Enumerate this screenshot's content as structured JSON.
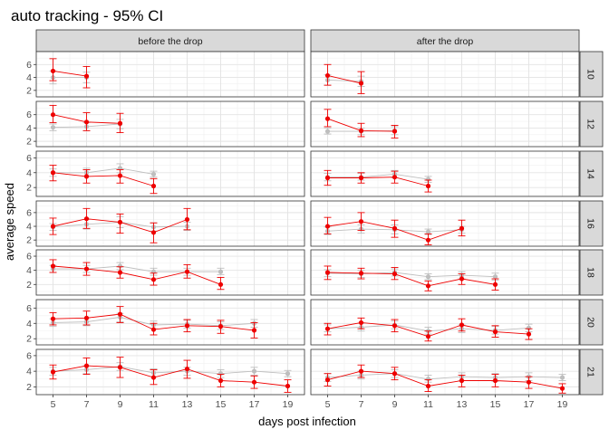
{
  "chart_data": {
    "type": "line",
    "title": "auto tracking - 95% CI",
    "xlabel": "days post infection",
    "ylabel": "average speed",
    "x_ticks": [
      5,
      7,
      9,
      11,
      13,
      15,
      17,
      19
    ],
    "xlim": [
      4,
      20
    ],
    "y_ticks": [
      2,
      4,
      6
    ],
    "columns": [
      "before the drop",
      "after the drop"
    ],
    "rows": [
      "10",
      "12",
      "14",
      "16",
      "18",
      "20",
      "21"
    ],
    "colors": {
      "red_series": "#ee0000",
      "grey_series": "#bebebe",
      "strip": "#d9d9d9"
    },
    "panels": [
      {
        "row": "10",
        "col": "before the drop",
        "ylim": [
          1,
          8
        ],
        "red": [
          {
            "x": 5,
            "y": 5.0,
            "lo": 3.5,
            "hi": 6.9
          },
          {
            "x": 7,
            "y": 4.2,
            "lo": 2.4,
            "hi": 5.7
          }
        ],
        "grey": [
          {
            "x": 5,
            "y": 4.0,
            "lo": 3.0,
            "hi": 5.0
          },
          {
            "x": 7,
            "y": 4.0,
            "lo": 3.2,
            "hi": 4.8
          }
        ]
      },
      {
        "row": "10",
        "col": "after the drop",
        "ylim": [
          1,
          8
        ],
        "red": [
          {
            "x": 5,
            "y": 4.3,
            "lo": 2.8,
            "hi": 6.0
          },
          {
            "x": 7,
            "y": 3.1,
            "lo": 1.5,
            "hi": 4.9
          }
        ],
        "grey": [
          {
            "x": 5,
            "y": 3.6,
            "lo": 2.8,
            "hi": 4.4
          },
          {
            "x": 7,
            "y": 3.4,
            "lo": 2.6,
            "hi": 4.2
          }
        ]
      },
      {
        "row": "12",
        "col": "before the drop",
        "ylim": [
          1.2,
          8
        ],
        "red": [
          {
            "x": 5,
            "y": 6.0,
            "lo": 4.8,
            "hi": 7.4
          },
          {
            "x": 7,
            "y": 4.9,
            "lo": 3.6,
            "hi": 6.3
          },
          {
            "x": 9,
            "y": 4.7,
            "lo": 3.3,
            "hi": 6.2
          }
        ],
        "grey": [
          {
            "x": 5,
            "y": 4.1,
            "lo": 3.6,
            "hi": 4.6
          },
          {
            "x": 7,
            "y": 4.2,
            "lo": 3.6,
            "hi": 4.8
          },
          {
            "x": 9,
            "y": 4.6,
            "lo": 3.9,
            "hi": 5.3
          }
        ]
      },
      {
        "row": "12",
        "col": "after the drop",
        "ylim": [
          1.2,
          8
        ],
        "red": [
          {
            "x": 5,
            "y": 5.4,
            "lo": 4.2,
            "hi": 6.8
          },
          {
            "x": 7,
            "y": 3.6,
            "lo": 2.7,
            "hi": 4.7
          },
          {
            "x": 9,
            "y": 3.5,
            "lo": 2.5,
            "hi": 4.4
          }
        ],
        "grey": [
          {
            "x": 5,
            "y": 3.5,
            "lo": 3.1,
            "hi": 4.0
          },
          {
            "x": 7,
            "y": 3.5,
            "lo": 3.0,
            "hi": 4.0
          },
          {
            "x": 9,
            "y": 3.6,
            "lo": 3.0,
            "hi": 4.2
          }
        ]
      },
      {
        "row": "14",
        "col": "before the drop",
        "ylim": [
          0.8,
          6.9
        ],
        "red": [
          {
            "x": 5,
            "y": 4.0,
            "lo": 2.9,
            "hi": 5.0
          },
          {
            "x": 7,
            "y": 3.5,
            "lo": 2.6,
            "hi": 4.4
          },
          {
            "x": 9,
            "y": 3.6,
            "lo": 2.6,
            "hi": 4.4
          },
          {
            "x": 11,
            "y": 2.2,
            "lo": 1.2,
            "hi": 3.2
          }
        ],
        "grey": [
          {
            "x": 5,
            "y": 4.0,
            "lo": 3.5,
            "hi": 4.5
          },
          {
            "x": 7,
            "y": 4.0,
            "lo": 3.5,
            "hi": 4.6
          },
          {
            "x": 9,
            "y": 4.6,
            "lo": 4.0,
            "hi": 5.2
          },
          {
            "x": 11,
            "y": 3.8,
            "lo": 3.4,
            "hi": 4.2
          }
        ]
      },
      {
        "row": "14",
        "col": "after the drop",
        "ylim": [
          0.8,
          6.9
        ],
        "red": [
          {
            "x": 5,
            "y": 3.3,
            "lo": 2.3,
            "hi": 4.3
          },
          {
            "x": 7,
            "y": 3.3,
            "lo": 2.6,
            "hi": 4.0
          },
          {
            "x": 9,
            "y": 3.4,
            "lo": 2.6,
            "hi": 4.2
          },
          {
            "x": 11,
            "y": 2.2,
            "lo": 1.4,
            "hi": 3.0
          }
        ],
        "grey": [
          {
            "x": 5,
            "y": 3.4,
            "lo": 2.9,
            "hi": 3.9
          },
          {
            "x": 7,
            "y": 3.4,
            "lo": 3.0,
            "hi": 3.9
          },
          {
            "x": 9,
            "y": 3.8,
            "lo": 3.3,
            "hi": 4.3
          },
          {
            "x": 11,
            "y": 3.1,
            "lo": 2.7,
            "hi": 3.5
          }
        ]
      },
      {
        "row": "16",
        "col": "before the drop",
        "ylim": [
          1.1,
          7.7
        ],
        "red": [
          {
            "x": 5,
            "y": 4.0,
            "lo": 2.8,
            "hi": 5.2
          },
          {
            "x": 7,
            "y": 5.1,
            "lo": 3.7,
            "hi": 6.6
          },
          {
            "x": 9,
            "y": 4.6,
            "lo": 3.0,
            "hi": 5.8
          },
          {
            "x": 11,
            "y": 3.1,
            "lo": 1.6,
            "hi": 4.5
          },
          {
            "x": 13,
            "y": 5.0,
            "lo": 3.5,
            "hi": 6.6
          }
        ],
        "grey": [
          {
            "x": 5,
            "y": 3.9,
            "lo": 3.4,
            "hi": 4.4
          },
          {
            "x": 7,
            "y": 4.3,
            "lo": 3.6,
            "hi": 5.0
          },
          {
            "x": 9,
            "y": 4.6,
            "lo": 3.8,
            "hi": 5.4
          },
          {
            "x": 11,
            "y": 3.9,
            "lo": 3.3,
            "hi": 4.5
          },
          {
            "x": 13,
            "y": 4.0,
            "lo": 3.4,
            "hi": 4.6
          }
        ]
      },
      {
        "row": "16",
        "col": "after the drop",
        "ylim": [
          1.1,
          7.7
        ],
        "red": [
          {
            "x": 5,
            "y": 4.0,
            "lo": 2.9,
            "hi": 5.3
          },
          {
            "x": 7,
            "y": 4.7,
            "lo": 3.4,
            "hi": 6.0
          },
          {
            "x": 9,
            "y": 3.7,
            "lo": 2.4,
            "hi": 4.9
          },
          {
            "x": 11,
            "y": 2.0,
            "lo": 1.3,
            "hi": 2.9
          },
          {
            "x": 13,
            "y": 3.7,
            "lo": 2.6,
            "hi": 4.9
          }
        ],
        "grey": [
          {
            "x": 5,
            "y": 3.3,
            "lo": 2.8,
            "hi": 3.9
          },
          {
            "x": 7,
            "y": 3.6,
            "lo": 3.0,
            "hi": 4.2
          },
          {
            "x": 9,
            "y": 3.5,
            "lo": 2.9,
            "hi": 4.2
          },
          {
            "x": 11,
            "y": 3.2,
            "lo": 2.8,
            "hi": 3.6
          },
          {
            "x": 13,
            "y": 3.5,
            "lo": 3.0,
            "hi": 4.0
          }
        ]
      },
      {
        "row": "18",
        "col": "before the drop",
        "ylim": [
          0.5,
          6.9
        ],
        "red": [
          {
            "x": 5,
            "y": 4.6,
            "lo": 3.7,
            "hi": 5.5
          },
          {
            "x": 7,
            "y": 4.2,
            "lo": 3.3,
            "hi": 5.1
          },
          {
            "x": 9,
            "y": 3.7,
            "lo": 2.9,
            "hi": 4.5
          },
          {
            "x": 11,
            "y": 2.7,
            "lo": 1.9,
            "hi": 3.6
          },
          {
            "x": 13,
            "y": 3.8,
            "lo": 2.9,
            "hi": 4.8
          },
          {
            "x": 15,
            "y": 2.0,
            "lo": 1.3,
            "hi": 3.0
          }
        ],
        "grey": [
          {
            "x": 5,
            "y": 4.2,
            "lo": 3.7,
            "hi": 4.7
          },
          {
            "x": 7,
            "y": 4.2,
            "lo": 3.7,
            "hi": 4.7
          },
          {
            "x": 9,
            "y": 4.6,
            "lo": 4.1,
            "hi": 5.1
          },
          {
            "x": 11,
            "y": 3.8,
            "lo": 3.3,
            "hi": 4.3
          },
          {
            "x": 13,
            "y": 3.8,
            "lo": 3.3,
            "hi": 4.3
          },
          {
            "x": 15,
            "y": 3.8,
            "lo": 3.4,
            "hi": 4.3
          }
        ]
      },
      {
        "row": "18",
        "col": "after the drop",
        "ylim": [
          0.5,
          6.9
        ],
        "red": [
          {
            "x": 5,
            "y": 3.7,
            "lo": 2.7,
            "hi": 4.6
          },
          {
            "x": 7,
            "y": 3.6,
            "lo": 2.8,
            "hi": 4.3
          },
          {
            "x": 9,
            "y": 3.5,
            "lo": 2.7,
            "hi": 4.4
          },
          {
            "x": 11,
            "y": 1.8,
            "lo": 1.1,
            "hi": 2.5
          },
          {
            "x": 13,
            "y": 2.8,
            "lo": 2.0,
            "hi": 3.5
          },
          {
            "x": 15,
            "y": 2.0,
            "lo": 1.2,
            "hi": 2.8
          }
        ],
        "grey": [
          {
            "x": 5,
            "y": 3.6,
            "lo": 3.1,
            "hi": 4.1
          },
          {
            "x": 7,
            "y": 3.5,
            "lo": 3.0,
            "hi": 4.0
          },
          {
            "x": 9,
            "y": 3.7,
            "lo": 3.2,
            "hi": 4.2
          },
          {
            "x": 11,
            "y": 3.1,
            "lo": 2.7,
            "hi": 3.5
          },
          {
            "x": 13,
            "y": 3.3,
            "lo": 2.8,
            "hi": 3.8
          },
          {
            "x": 15,
            "y": 3.1,
            "lo": 2.6,
            "hi": 3.6
          }
        ]
      },
      {
        "row": "20",
        "col": "before the drop",
        "ylim": [
          1.2,
          7.1
        ],
        "red": [
          {
            "x": 5,
            "y": 4.6,
            "lo": 3.8,
            "hi": 5.4
          },
          {
            "x": 7,
            "y": 4.7,
            "lo": 3.8,
            "hi": 5.6
          },
          {
            "x": 9,
            "y": 5.2,
            "lo": 4.1,
            "hi": 6.2
          },
          {
            "x": 11,
            "y": 3.2,
            "lo": 2.5,
            "hi": 4.0
          },
          {
            "x": 13,
            "y": 3.7,
            "lo": 2.9,
            "hi": 4.5
          },
          {
            "x": 15,
            "y": 3.6,
            "lo": 2.7,
            "hi": 4.4
          },
          {
            "x": 17,
            "y": 3.1,
            "lo": 2.1,
            "hi": 4.1
          }
        ],
        "grey": [
          {
            "x": 5,
            "y": 4.1,
            "lo": 3.6,
            "hi": 4.6
          },
          {
            "x": 7,
            "y": 4.2,
            "lo": 3.7,
            "hi": 4.7
          },
          {
            "x": 9,
            "y": 4.8,
            "lo": 4.2,
            "hi": 5.3
          },
          {
            "x": 11,
            "y": 3.8,
            "lo": 3.3,
            "hi": 4.3
          },
          {
            "x": 13,
            "y": 3.9,
            "lo": 3.4,
            "hi": 4.4
          },
          {
            "x": 15,
            "y": 3.7,
            "lo": 3.2,
            "hi": 4.2
          },
          {
            "x": 17,
            "y": 4.0,
            "lo": 3.5,
            "hi": 4.5
          }
        ]
      },
      {
        "row": "20",
        "col": "after the drop",
        "ylim": [
          1.2,
          7.1
        ],
        "red": [
          {
            "x": 5,
            "y": 3.3,
            "lo": 2.5,
            "hi": 4.0
          },
          {
            "x": 7,
            "y": 4.1,
            "lo": 3.3,
            "hi": 4.7
          },
          {
            "x": 9,
            "y": 3.7,
            "lo": 2.9,
            "hi": 4.5
          },
          {
            "x": 11,
            "y": 2.3,
            "lo": 1.7,
            "hi": 3.0
          },
          {
            "x": 13,
            "y": 3.8,
            "lo": 3.0,
            "hi": 4.6
          },
          {
            "x": 15,
            "y": 2.9,
            "lo": 2.2,
            "hi": 3.7
          },
          {
            "x": 17,
            "y": 2.6,
            "lo": 1.9,
            "hi": 3.3
          }
        ],
        "grey": [
          {
            "x": 5,
            "y": 3.3,
            "lo": 2.9,
            "hi": 3.8
          },
          {
            "x": 7,
            "y": 3.5,
            "lo": 3.0,
            "hi": 4.0
          },
          {
            "x": 9,
            "y": 3.8,
            "lo": 3.3,
            "hi": 4.3
          },
          {
            "x": 11,
            "y": 3.0,
            "lo": 2.6,
            "hi": 3.5
          },
          {
            "x": 13,
            "y": 3.3,
            "lo": 2.8,
            "hi": 3.8
          },
          {
            "x": 15,
            "y": 3.1,
            "lo": 2.6,
            "hi": 3.6
          },
          {
            "x": 17,
            "y": 3.4,
            "lo": 2.9,
            "hi": 3.9
          }
        ]
      },
      {
        "row": "21",
        "col": "before the drop",
        "ylim": [
          1.0,
          6.8
        ],
        "red": [
          {
            "x": 5,
            "y": 3.9,
            "lo": 3.0,
            "hi": 4.8
          },
          {
            "x": 7,
            "y": 4.7,
            "lo": 3.6,
            "hi": 5.7
          },
          {
            "x": 9,
            "y": 4.5,
            "lo": 3.2,
            "hi": 5.8
          },
          {
            "x": 11,
            "y": 3.2,
            "lo": 2.3,
            "hi": 4.2
          },
          {
            "x": 13,
            "y": 4.3,
            "lo": 3.1,
            "hi": 5.4
          },
          {
            "x": 15,
            "y": 2.8,
            "lo": 2.0,
            "hi": 3.6
          },
          {
            "x": 17,
            "y": 2.6,
            "lo": 1.8,
            "hi": 3.4
          },
          {
            "x": 19,
            "y": 2.1,
            "lo": 1.3,
            "hi": 2.9
          }
        ],
        "grey": [
          {
            "x": 5,
            "y": 4.0,
            "lo": 3.5,
            "hi": 4.5
          },
          {
            "x": 7,
            "y": 4.2,
            "lo": 3.7,
            "hi": 4.7
          },
          {
            "x": 9,
            "y": 4.6,
            "lo": 4.1,
            "hi": 5.1
          },
          {
            "x": 11,
            "y": 3.8,
            "lo": 3.3,
            "hi": 4.3
          },
          {
            "x": 13,
            "y": 4.0,
            "lo": 3.5,
            "hi": 4.5
          },
          {
            "x": 15,
            "y": 3.7,
            "lo": 3.2,
            "hi": 4.2
          },
          {
            "x": 17,
            "y": 4.0,
            "lo": 3.5,
            "hi": 4.5
          },
          {
            "x": 19,
            "y": 3.7,
            "lo": 3.3,
            "hi": 4.1
          }
        ]
      },
      {
        "row": "21",
        "col": "after the drop",
        "ylim": [
          1.0,
          6.8
        ],
        "red": [
          {
            "x": 5,
            "y": 2.9,
            "lo": 2.1,
            "hi": 3.7
          },
          {
            "x": 7,
            "y": 4.0,
            "lo": 3.2,
            "hi": 4.8
          },
          {
            "x": 9,
            "y": 3.7,
            "lo": 2.9,
            "hi": 4.5
          },
          {
            "x": 11,
            "y": 2.1,
            "lo": 1.4,
            "hi": 2.9
          },
          {
            "x": 13,
            "y": 2.8,
            "lo": 2.0,
            "hi": 3.5
          },
          {
            "x": 15,
            "y": 2.8,
            "lo": 2.0,
            "hi": 3.6
          },
          {
            "x": 17,
            "y": 2.6,
            "lo": 1.8,
            "hi": 3.3
          },
          {
            "x": 19,
            "y": 1.8,
            "lo": 1.2,
            "hi": 2.4
          }
        ],
        "grey": [
          {
            "x": 5,
            "y": 3.2,
            "lo": 2.7,
            "hi": 3.7
          },
          {
            "x": 7,
            "y": 3.5,
            "lo": 3.0,
            "hi": 4.0
          },
          {
            "x": 9,
            "y": 3.7,
            "lo": 3.2,
            "hi": 4.2
          },
          {
            "x": 11,
            "y": 3.0,
            "lo": 2.6,
            "hi": 3.5
          },
          {
            "x": 13,
            "y": 3.3,
            "lo": 2.8,
            "hi": 3.8
          },
          {
            "x": 15,
            "y": 3.2,
            "lo": 2.7,
            "hi": 3.7
          },
          {
            "x": 17,
            "y": 3.3,
            "lo": 2.8,
            "hi": 3.8
          },
          {
            "x": 19,
            "y": 3.2,
            "lo": 2.8,
            "hi": 3.6
          }
        ]
      }
    ]
  }
}
